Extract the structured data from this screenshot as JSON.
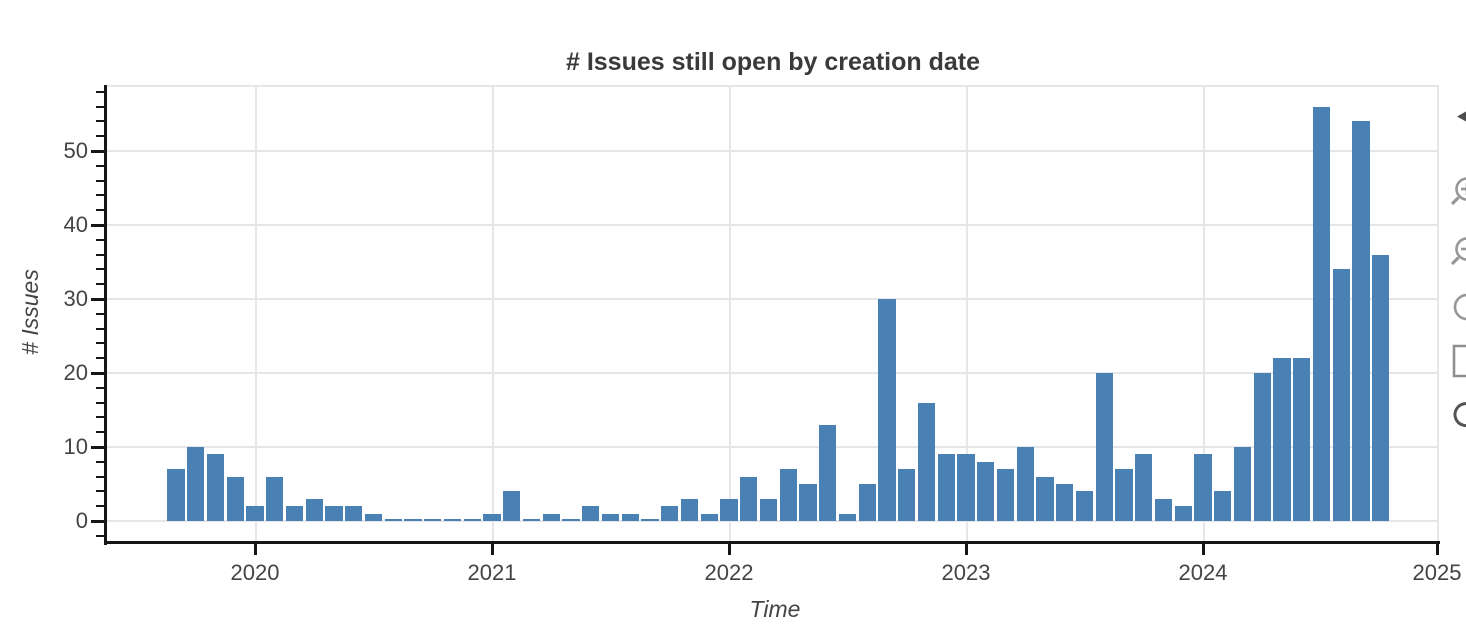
{
  "title": "# Issues still open by creation date",
  "x_axis": {
    "label": "Time",
    "tick_labels": [
      "2020",
      "2021",
      "2022",
      "2023",
      "2024",
      "2025"
    ]
  },
  "y_axis": {
    "label": "# Issues",
    "tick_labels": [
      "0",
      "10",
      "20",
      "30",
      "40",
      "50"
    ]
  },
  "toolbar": {
    "tools": [
      "pan",
      "box-zoom",
      "wheel-zoom",
      "hover",
      "save",
      "reset"
    ]
  },
  "colors": {
    "bar": "#4a81b5",
    "grid": "#e6e6e6",
    "axis": "#161616",
    "title_text": "#3a3a3a",
    "label_text": "#444444",
    "toolbar_icon": "#979797",
    "toolbar_dark_icon": "#4d4d4d"
  },
  "chart_data": {
    "type": "bar",
    "title": "# Issues still open by creation date",
    "xlabel": "Time",
    "ylabel": "# Issues",
    "x_tick_labels": [
      "2020",
      "2021",
      "2022",
      "2023",
      "2024",
      "2025"
    ],
    "y_tick_labels": [
      0,
      10,
      20,
      30,
      40,
      50
    ],
    "ylim": [
      -3,
      59
    ],
    "grid": true,
    "legend": "none",
    "bar_color": "#4a81b5",
    "x_interval": "month",
    "categories": [
      "2019-09",
      "2019-10",
      "2019-11",
      "2019-12",
      "2020-01",
      "2020-02",
      "2020-03",
      "2020-04",
      "2020-05",
      "2020-06",
      "2020-07",
      "2020-08",
      "2020-09",
      "2020-10",
      "2020-11",
      "2020-12",
      "2021-01",
      "2021-02",
      "2021-03",
      "2021-04",
      "2021-05",
      "2021-06",
      "2021-07",
      "2021-08",
      "2021-09",
      "2021-10",
      "2021-11",
      "2021-12",
      "2022-01",
      "2022-02",
      "2022-03",
      "2022-04",
      "2022-05",
      "2022-06",
      "2022-07",
      "2022-08",
      "2022-09",
      "2022-10",
      "2022-11",
      "2022-12",
      "2023-01",
      "2023-02",
      "2023-03",
      "2023-04",
      "2023-05",
      "2023-06",
      "2023-07",
      "2023-08",
      "2023-09",
      "2023-10",
      "2023-11",
      "2023-12",
      "2024-01",
      "2024-02",
      "2024-03",
      "2024-04",
      "2024-05",
      "2024-06",
      "2024-07",
      "2024-08",
      "2024-09",
      "2024-10"
    ],
    "values": [
      7,
      10,
      9,
      6,
      2,
      6,
      2,
      3,
      2,
      2,
      1,
      0,
      0,
      0,
      0,
      0,
      1,
      4,
      0,
      1,
      0,
      2,
      1,
      1,
      0,
      2,
      3,
      1,
      3,
      6,
      3,
      7,
      5,
      13,
      1,
      5,
      30,
      7,
      16,
      9,
      9,
      8,
      7,
      10,
      6,
      5,
      4,
      20,
      7,
      9,
      3,
      2,
      9,
      4,
      10,
      20,
      22,
      22,
      56,
      34,
      54,
      36
    ]
  }
}
